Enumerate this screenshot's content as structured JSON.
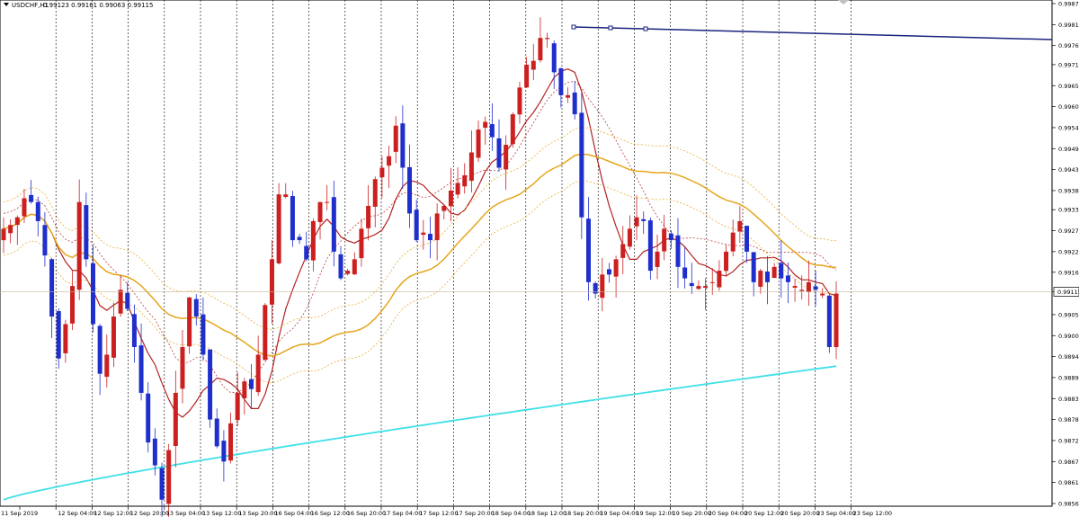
{
  "header": {
    "symbol": "USDCHF,H1",
    "ohlc": "0.99123 0.99161 0.99063 0.99115"
  },
  "chart_data": {
    "type": "candlestick",
    "ylim": [
      0.9856,
      0.9987
    ],
    "price_ticks": [
      "0.99870",
      "0.99815",
      "0.99760",
      "0.99710",
      "0.99655",
      "0.99600",
      "0.99545",
      "0.99490",
      "0.99435",
      "0.99380",
      "0.99330",
      "0.99275",
      "0.99220",
      "0.99166",
      "0.99115",
      "0.99055",
      "0.99000",
      "0.98945",
      "0.98890",
      "0.98835",
      "0.98780",
      "0.98725",
      "0.98670",
      "0.98615",
      "0.98560"
    ],
    "current_price": "0.99115",
    "time_labels": [
      "11 Sep 2019",
      "12 Sep 04:00",
      "12 Sep 12:00",
      "12 Sep 20:00",
      "13 Sep 04:00",
      "13 Sep 12:00",
      "13 Sep 20:00",
      "16 Sep 04:00",
      "16 Sep 12:00",
      "16 Sep 20:00",
      "17 Sep 04:00",
      "17 Sep 12:00",
      "17 Sep 20:00",
      "18 Sep 04:00",
      "18 Sep 12:00",
      "18 Sep 20:00",
      "19 Sep 04:00",
      "19 Sep 12:00",
      "19 Sep 20:00",
      "20 Sep 04:00",
      "20 Sep 12:00",
      "20 Sep 20:00",
      "23 Sep 04:00",
      "23 Sep 12:00"
    ],
    "closes": [
      0.9928,
      0.9929,
      0.9931,
      0.9936,
      0.9935,
      0.993,
      0.9921,
      0.9905,
      0.9894,
      0.9903,
      0.9913,
      0.9935,
      0.992,
      0.9903,
      0.989,
      0.9895,
      0.9905,
      0.9912,
      0.9907,
      0.9897,
      0.9885,
      0.9872,
      0.9866,
      0.9857,
      0.987,
      0.9885,
      0.9897,
      0.991,
      0.9905,
      0.9895,
      0.9878,
      0.9871,
      0.9867,
      0.9877,
      0.9885,
      0.9888,
      0.9886,
      0.9895,
      0.9908,
      0.992,
      0.9937,
      0.9937,
      0.9925,
      0.9925,
      0.992,
      0.993,
      0.9935,
      0.9935,
      0.9922,
      0.9915,
      0.9917,
      0.992,
      0.9928,
      0.9934,
      0.9941,
      0.9944,
      0.9947,
      0.9955,
      0.9944,
      0.9932,
      0.9925,
      0.9927,
      0.9925,
      0.9932,
      0.9934,
      0.9938,
      0.994,
      0.9942,
      0.9948,
      0.9954,
      0.9956,
      0.9952,
      0.9944,
      0.995,
      0.9958,
      0.9965,
      0.9971,
      0.9972,
      0.9978,
      0.9978,
      0.9969,
      0.9963,
      0.9963,
      0.9958,
      0.9931,
      0.9914,
      0.9911,
      0.9916,
      0.9916,
      0.992,
      0.9924,
      0.9928,
      0.9931,
      0.993,
      0.9917,
      0.9922,
      0.9928,
      0.9925,
      0.9918,
      0.9915,
      0.9913,
      0.9913,
      0.9913,
      0.9914,
      0.9917,
      0.9922,
      0.9927,
      0.993,
      0.9922,
      0.9914,
      0.9917,
      0.9914,
      0.9918,
      0.9915,
      0.9914,
      0.9913,
      0.9912,
      0.9914,
      0.9912,
      0.9911,
      0.9897,
      0.9911
    ],
    "sma_fast_color": "#b22222",
    "sma_mid_color": "#e5a51c",
    "sma_slow_color": "#40e0e8",
    "bull_color": "#cc1f1f",
    "bear_color": "#1f2fcc",
    "trendline_color": "#1a237e",
    "price_line_color": "#c8b89a",
    "grid": "vertical dashed"
  }
}
